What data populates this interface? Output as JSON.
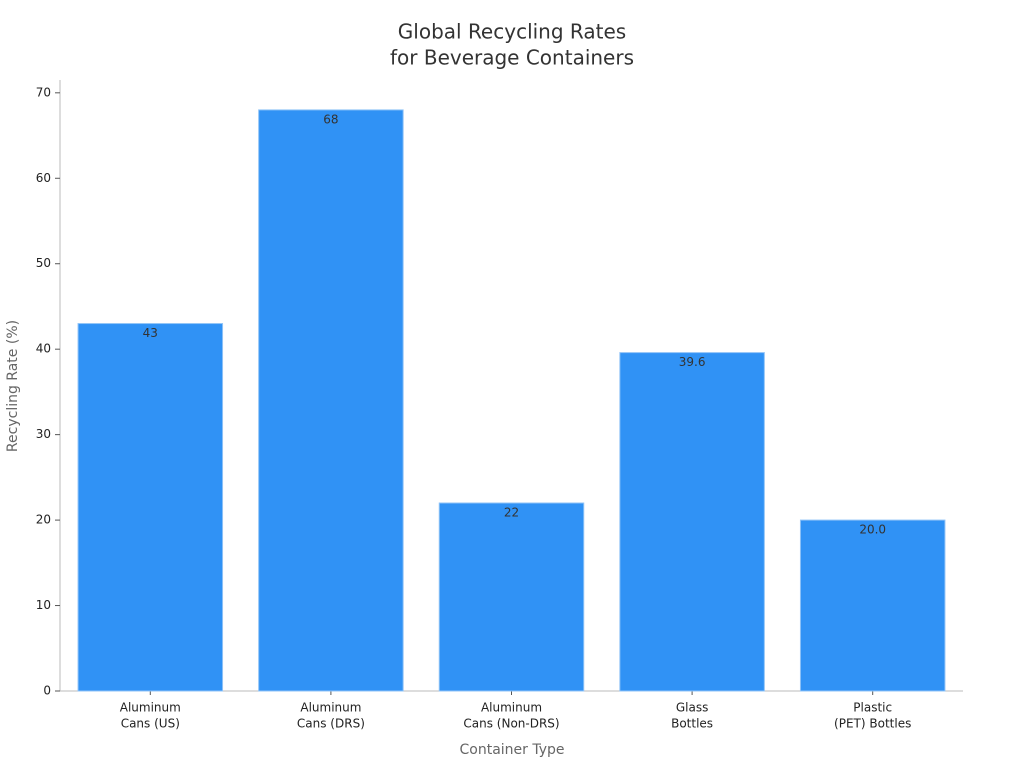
{
  "chart_data": {
    "type": "bar",
    "title": [
      "Global Recycling Rates",
      "for Beverage Containers"
    ],
    "x_label": "Container Type",
    "y_label": "Recycling Rate (%)",
    "categories": [
      [
        "Aluminum",
        "Cans (US)"
      ],
      [
        "Aluminum",
        "Cans (DRS)"
      ],
      [
        "Aluminum",
        "Cans (Non-DRS)"
      ],
      [
        "Glass",
        "Bottles"
      ],
      [
        "Plastic",
        "(PET) Bottles"
      ]
    ],
    "values": [
      43,
      68,
      22,
      39.6,
      20
    ],
    "value_labels": [
      "43",
      "68",
      "22",
      "39.6",
      "20.0"
    ],
    "color": "#3092f5",
    "ylim": [
      0,
      71.5
    ],
    "yticks": [
      0,
      10,
      20,
      30,
      40,
      50,
      60,
      70
    ],
    "grid": false
  }
}
